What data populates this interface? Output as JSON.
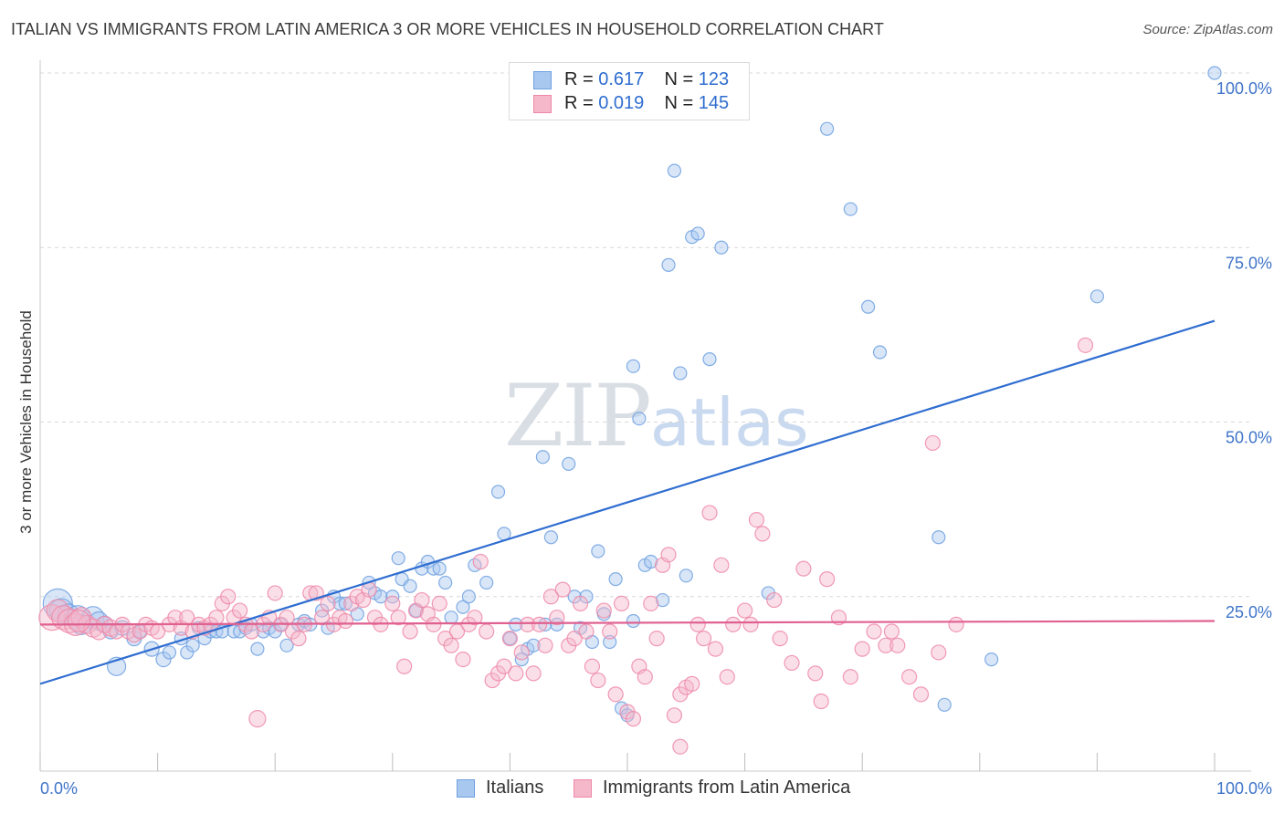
{
  "header": {
    "title": "ITALIAN VS IMMIGRANTS FROM LATIN AMERICA 3 OR MORE VEHICLES IN HOUSEHOLD CORRELATION CHART",
    "source": "Source: ZipAtlas.com"
  },
  "watermark": {
    "part1": "ZIP",
    "part2": "atlas"
  },
  "legend": {
    "rows": [
      {
        "r_label": "R =",
        "r_value": "0.617",
        "n_label": "N =",
        "n_value": "123",
        "color": "#a9c8f0"
      },
      {
        "r_label": "R =",
        "r_value": "0.019",
        "n_label": "N =",
        "n_value": "145",
        "color": "#f5b8cb"
      }
    ]
  },
  "chart_data": {
    "type": "scatter",
    "title": "ITALIAN VS IMMIGRANTS FROM LATIN AMERICA 3 OR MORE VEHICLES IN HOUSEHOLD CORRELATION CHART",
    "xlabel": "",
    "ylabel": "3 or more Vehicles in Household",
    "xlim": [
      0,
      100
    ],
    "ylim": [
      0,
      100
    ],
    "x_tick_labels": [
      "0.0%",
      "100.0%"
    ],
    "y_tick_labels": [
      "25.0%",
      "50.0%",
      "75.0%",
      "100.0%"
    ],
    "y_ticks": [
      25,
      50,
      75,
      100
    ],
    "grid": true,
    "legend_position": "bottom-center",
    "series": [
      {
        "name": "Italians",
        "color": "#6fa0e0",
        "fill": "#a9c8f0",
        "trend": {
          "x": [
            0,
            100
          ],
          "y": [
            12.5,
            64.5
          ],
          "color": "#2f6dd0"
        },
        "points": [
          [
            1.5,
            24,
            16
          ],
          [
            1.8,
            23,
            13
          ],
          [
            2.4,
            22.5,
            11
          ],
          [
            3.2,
            22,
            13
          ],
          [
            3.5,
            21,
            11
          ],
          [
            4.5,
            22,
            12
          ],
          [
            5,
            21.5,
            10
          ],
          [
            5.5,
            21,
            9
          ],
          [
            6,
            20,
            8
          ],
          [
            7,
            20.5,
            8
          ],
          [
            8,
            19,
            8
          ],
          [
            8.5,
            20,
            7
          ],
          [
            9.5,
            17.5,
            8
          ],
          [
            10.5,
            16,
            8
          ],
          [
            11,
            17,
            7
          ],
          [
            12,
            19,
            7
          ],
          [
            12.5,
            17,
            7
          ],
          [
            13,
            18,
            7
          ],
          [
            13.5,
            20.5,
            7
          ],
          [
            14,
            19,
            7
          ],
          [
            14.5,
            20,
            7
          ],
          [
            15,
            20,
            7
          ],
          [
            15.5,
            20,
            7
          ],
          [
            16.5,
            20,
            7
          ],
          [
            17,
            20,
            7
          ],
          [
            17.5,
            20.5,
            7
          ],
          [
            18,
            21,
            7
          ],
          [
            18.5,
            17.5,
            7
          ],
          [
            19,
            20,
            7
          ],
          [
            19.5,
            20.5,
            7
          ],
          [
            20,
            20,
            7
          ],
          [
            20.5,
            21,
            7
          ],
          [
            21,
            18,
            7
          ],
          [
            22,
            21,
            7
          ],
          [
            22.5,
            21.5,
            7
          ],
          [
            23,
            21,
            7
          ],
          [
            24,
            23,
            7
          ],
          [
            24.5,
            20.5,
            7
          ],
          [
            25,
            25,
            7
          ],
          [
            25.5,
            24,
            7
          ],
          [
            26,
            24,
            7
          ],
          [
            27,
            22.5,
            7
          ],
          [
            28,
            27,
            7
          ],
          [
            28.5,
            25.5,
            7
          ],
          [
            29,
            25,
            7
          ],
          [
            30,
            25,
            7
          ],
          [
            30.5,
            30.5,
            7
          ],
          [
            30.8,
            27.5,
            7
          ],
          [
            31.5,
            26.5,
            7
          ],
          [
            32,
            23,
            7
          ],
          [
            32.5,
            29,
            7
          ],
          [
            33,
            30,
            7
          ],
          [
            33.5,
            29,
            7
          ],
          [
            34,
            29,
            7
          ],
          [
            34.5,
            27,
            7
          ],
          [
            35,
            22,
            7
          ],
          [
            36,
            23.5,
            7
          ],
          [
            36.5,
            25,
            7
          ],
          [
            37,
            29.5,
            7
          ],
          [
            38,
            27,
            7
          ],
          [
            39,
            40,
            7
          ],
          [
            39.5,
            34,
            7
          ],
          [
            40,
            19,
            7
          ],
          [
            40.5,
            21,
            7
          ],
          [
            41,
            16,
            7
          ],
          [
            41.5,
            17.5,
            7
          ],
          [
            42,
            18,
            7
          ],
          [
            42.8,
            45,
            7
          ],
          [
            43,
            21,
            7
          ],
          [
            43.5,
            33.5,
            7
          ],
          [
            44,
            21,
            7
          ],
          [
            45,
            44,
            7
          ],
          [
            45.5,
            25,
            7
          ],
          [
            46,
            20.5,
            7
          ],
          [
            46.5,
            25,
            7
          ],
          [
            47,
            18.5,
            7
          ],
          [
            47.5,
            31.5,
            7
          ],
          [
            48,
            22.5,
            7
          ],
          [
            48.5,
            18.5,
            7
          ],
          [
            49,
            27.5,
            7
          ],
          [
            49.5,
            9,
            7
          ],
          [
            50,
            8,
            7
          ],
          [
            50.5,
            21.5,
            7
          ],
          [
            50.5,
            58,
            7
          ],
          [
            51,
            50.5,
            7
          ],
          [
            51.5,
            29.5,
            7
          ],
          [
            52,
            30,
            7
          ],
          [
            53,
            24.5,
            7
          ],
          [
            53.5,
            72.5,
            7
          ],
          [
            54,
            86,
            7
          ],
          [
            54.5,
            57,
            7
          ],
          [
            55,
            28,
            7
          ],
          [
            55.5,
            76.5,
            7
          ],
          [
            56,
            77,
            7
          ],
          [
            57,
            59,
            7
          ],
          [
            58,
            75,
            7
          ],
          [
            62,
            25.5,
            7
          ],
          [
            67,
            92,
            7
          ],
          [
            69,
            80.5,
            7
          ],
          [
            70.5,
            66.5,
            7
          ],
          [
            71.5,
            60,
            7
          ],
          [
            76.5,
            33.5,
            7
          ],
          [
            77,
            9.5,
            7
          ],
          [
            81,
            16,
            7
          ],
          [
            90,
            68,
            7
          ],
          [
            100,
            100,
            7
          ],
          [
            6.5,
            15,
            10
          ]
        ]
      },
      {
        "name": "Immigrants from Latin America",
        "color": "#ee88a8",
        "fill": "#f5b8cb",
        "trend": {
          "x": [
            0,
            100
          ],
          "y": [
            21,
            21.5
          ],
          "color": "#e06090"
        },
        "points": [
          [
            1,
            22,
            14
          ],
          [
            1.5,
            23,
            12
          ],
          [
            2,
            22,
            13
          ],
          [
            2.5,
            21.5,
            13
          ],
          [
            3,
            21,
            12
          ],
          [
            3.5,
            22,
            11
          ],
          [
            4,
            21,
            10
          ],
          [
            4.5,
            20.5,
            10
          ],
          [
            5,
            20,
            9
          ],
          [
            5.5,
            21,
            9
          ],
          [
            6,
            20.5,
            9
          ],
          [
            6.5,
            20,
            8
          ],
          [
            7,
            21,
            8
          ],
          [
            7.5,
            20,
            8
          ],
          [
            8,
            19.5,
            8
          ],
          [
            8.5,
            20,
            8
          ],
          [
            9,
            21,
            8
          ],
          [
            9.5,
            20.5,
            8
          ],
          [
            10,
            20,
            8
          ],
          [
            11,
            21,
            8
          ],
          [
            11.5,
            22,
            8
          ],
          [
            12,
            20.5,
            8
          ],
          [
            12.5,
            22,
            8
          ],
          [
            13,
            20,
            8
          ],
          [
            13.5,
            21,
            8
          ],
          [
            14,
            20.5,
            8
          ],
          [
            14.5,
            21,
            8
          ],
          [
            15,
            22,
            8
          ],
          [
            15.5,
            24,
            8
          ],
          [
            16,
            25,
            8
          ],
          [
            16.5,
            22,
            8
          ],
          [
            17,
            23,
            8
          ],
          [
            17.5,
            21,
            8
          ],
          [
            18,
            20,
            8
          ],
          [
            18.5,
            7.5,
            9
          ],
          [
            19,
            21,
            8
          ],
          [
            19.5,
            22,
            8
          ],
          [
            20,
            25.5,
            8
          ],
          [
            20.5,
            21,
            8
          ],
          [
            21,
            22,
            8
          ],
          [
            21.5,
            20,
            8
          ],
          [
            22,
            19,
            8
          ],
          [
            22.5,
            21,
            8
          ],
          [
            23,
            25.5,
            8
          ],
          [
            23.5,
            25.5,
            8
          ],
          [
            24,
            22,
            8
          ],
          [
            24.5,
            24,
            8
          ],
          [
            25,
            21,
            8
          ],
          [
            25.5,
            22,
            8
          ],
          [
            26,
            21.5,
            8
          ],
          [
            26.5,
            24,
            8
          ],
          [
            27,
            25,
            8
          ],
          [
            27.5,
            24.5,
            8
          ],
          [
            28,
            26,
            8
          ],
          [
            28.5,
            22,
            8
          ],
          [
            29,
            21,
            8
          ],
          [
            30,
            24,
            8
          ],
          [
            30.5,
            22,
            8
          ],
          [
            31,
            15,
            8
          ],
          [
            31.5,
            20,
            8
          ],
          [
            32,
            23,
            8
          ],
          [
            32.5,
            24.5,
            8
          ],
          [
            33,
            22.5,
            8
          ],
          [
            33.5,
            21,
            8
          ],
          [
            34,
            24,
            8
          ],
          [
            34.5,
            19,
            8
          ],
          [
            35,
            18,
            8
          ],
          [
            35.5,
            20,
            8
          ],
          [
            36,
            16,
            8
          ],
          [
            36.5,
            21,
            8
          ],
          [
            37,
            22,
            8
          ],
          [
            37.5,
            30,
            8
          ],
          [
            38,
            20,
            8
          ],
          [
            38.5,
            13,
            8
          ],
          [
            39,
            14,
            8
          ],
          [
            39.5,
            15,
            8
          ],
          [
            40,
            19,
            8
          ],
          [
            40.5,
            14,
            8
          ],
          [
            41,
            17,
            8
          ],
          [
            41.5,
            21,
            8
          ],
          [
            42,
            14,
            8
          ],
          [
            42.5,
            21,
            8
          ],
          [
            43,
            18,
            8
          ],
          [
            43.5,
            25,
            8
          ],
          [
            44,
            22,
            8
          ],
          [
            44.5,
            26,
            8
          ],
          [
            45,
            18,
            8
          ],
          [
            45.5,
            19,
            8
          ],
          [
            46,
            24,
            8
          ],
          [
            46.5,
            20,
            8
          ],
          [
            47,
            15,
            8
          ],
          [
            47.5,
            13,
            8
          ],
          [
            48,
            23,
            8
          ],
          [
            48.5,
            20,
            8
          ],
          [
            49,
            11,
            8
          ],
          [
            49.5,
            24,
            8
          ],
          [
            50,
            8.5,
            8
          ],
          [
            50.5,
            7.5,
            8
          ],
          [
            51,
            15,
            8
          ],
          [
            51.5,
            13.5,
            8
          ],
          [
            52,
            24,
            8
          ],
          [
            52.5,
            19,
            8
          ],
          [
            53,
            29.5,
            8
          ],
          [
            53.5,
            31,
            8
          ],
          [
            54,
            8,
            8
          ],
          [
            54.5,
            11,
            8
          ],
          [
            54.5,
            3.5,
            8
          ],
          [
            55,
            12,
            8
          ],
          [
            55.5,
            12.5,
            8
          ],
          [
            56,
            21,
            8
          ],
          [
            56.5,
            19,
            8
          ],
          [
            57,
            37,
            8
          ],
          [
            57.5,
            17.5,
            8
          ],
          [
            58,
            29.5,
            8
          ],
          [
            58.5,
            13.5,
            8
          ],
          [
            59,
            21,
            8
          ],
          [
            60,
            23,
            8
          ],
          [
            60.5,
            21,
            8
          ],
          [
            61,
            36,
            8
          ],
          [
            61.5,
            34,
            8
          ],
          [
            62.5,
            24.5,
            8
          ],
          [
            63,
            19,
            8
          ],
          [
            64,
            15.5,
            8
          ],
          [
            65,
            29,
            8
          ],
          [
            66,
            14,
            8
          ],
          [
            66.5,
            10,
            8
          ],
          [
            67,
            27.5,
            8
          ],
          [
            68,
            22,
            8
          ],
          [
            69,
            13.5,
            8
          ],
          [
            70,
            17.5,
            8
          ],
          [
            71,
            20,
            8
          ],
          [
            72,
            18,
            8
          ],
          [
            72.5,
            20,
            8
          ],
          [
            73,
            18,
            8
          ],
          [
            74,
            13.5,
            8
          ],
          [
            75,
            11,
            8
          ],
          [
            76,
            47,
            8
          ],
          [
            76.5,
            17,
            8
          ],
          [
            89,
            61,
            8
          ],
          [
            78,
            21,
            8
          ],
          [
            3.3,
            21.5,
            12
          ]
        ]
      }
    ]
  }
}
